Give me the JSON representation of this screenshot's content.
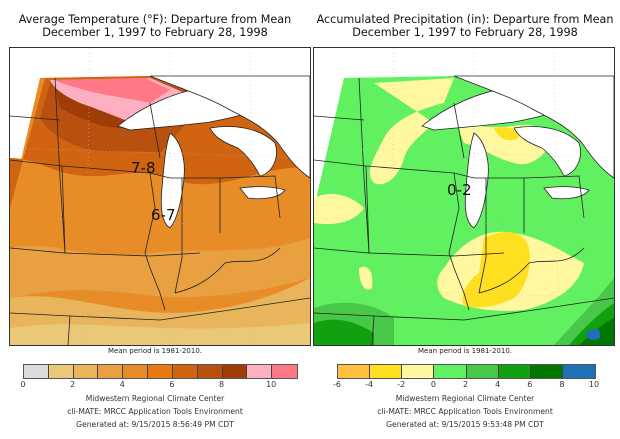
{
  "panels": [
    {
      "id": "temperature",
      "title_line1": "Average Temperature (°F): Departure from Mean",
      "title_line2": "December 1, 1997 to February 28, 1998",
      "region_labels": [
        "7-8",
        "6-7"
      ],
      "mean_note": "Mean period is 1981-2010.",
      "legend": {
        "ticks": [
          "0",
          "2",
          "4",
          "6",
          "8",
          "10"
        ],
        "bins": [
          {
            "range": "0-1",
            "color": "#dcdcdc"
          },
          {
            "range": "1-2",
            "color": "#ebc878"
          },
          {
            "range": "2-3",
            "color": "#e8b45c"
          },
          {
            "range": "3-4",
            "color": "#e8a040"
          },
          {
            "range": "4-5",
            "color": "#e88c28"
          },
          {
            "range": "5-6",
            "color": "#e87810"
          },
          {
            "range": "6-7",
            "color": "#d06410"
          },
          {
            "range": "7-8",
            "color": "#b85010"
          },
          {
            "range": "8-9",
            "color": "#a03c08"
          },
          {
            "range": "9-10",
            "color": "#ffb0c0"
          },
          {
            "range": "10-11",
            "color": "#ff7888"
          }
        ]
      },
      "credits": [
        "Midwestern Regional Climate Center",
        "cli-MATE: MRCC Application Tools Environment",
        "Generated at: 9/15/2015 8:56:49 PM CDT"
      ]
    },
    {
      "id": "precipitation",
      "title_line1": "Accumulated Precipitation (in): Departure from Mean",
      "title_line2": "December 1, 1997 to February 28, 1998",
      "region_labels": [
        "0-2"
      ],
      "mean_note": "Mean period is 1981-2010.",
      "legend": {
        "ticks": [
          "-6",
          "-4",
          "-2",
          "0",
          "2",
          "4",
          "6",
          "8",
          "10"
        ],
        "bins": [
          {
            "range": "-6 to -4",
            "color": "#ffc040"
          },
          {
            "range": "-4 to -2",
            "color": "#ffe020"
          },
          {
            "range": "-2 to 0",
            "color": "#fff8a0"
          },
          {
            "range": "0 to 2",
            "color": "#60f060"
          },
          {
            "range": "2 to 4",
            "color": "#48c848"
          },
          {
            "range": "4 to 6",
            "color": "#10a010"
          },
          {
            "range": "6 to 8",
            "color": "#007800"
          },
          {
            "range": "8 to 10",
            "color": "#2070b8"
          }
        ]
      },
      "credits": [
        "Midwestern Regional Climate Center",
        "cli-MATE: MRCC Application Tools Environment",
        "Generated at: 9/15/2015 9:53:48 PM CDT"
      ]
    }
  ]
}
